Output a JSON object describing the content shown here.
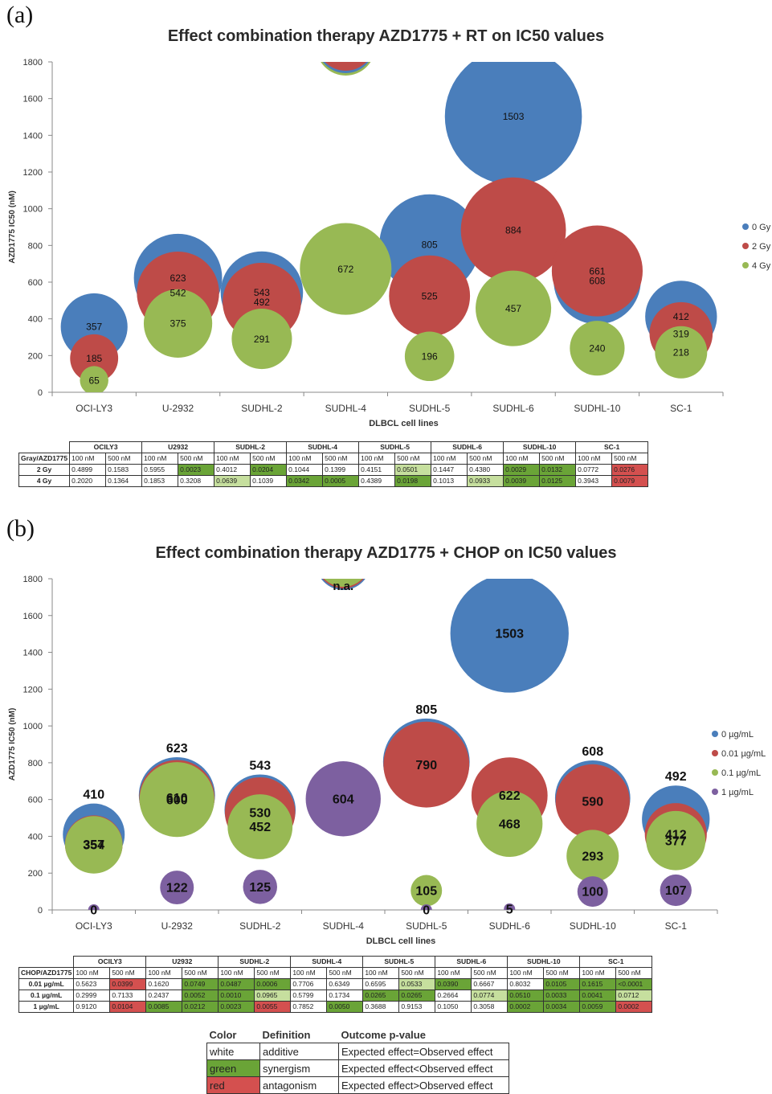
{
  "panel_a": {
    "label": "(a)",
    "chart_data": {
      "type": "bubble",
      "title": "Effect combination therapy AZD1775 + RT on IC50 values",
      "xlabel": "DLBCL cell lines",
      "ylabel": "AZD1775 IC50 (nM)",
      "ylim": [
        0,
        1800
      ],
      "yticks": [
        "0",
        "200",
        "400",
        "600",
        "800",
        "1000",
        "1200",
        "1400",
        "1600",
        "1800"
      ],
      "categories": [
        "OCI-LY3",
        "U-2932",
        "SUDHL-2",
        "SUDHL-4",
        "SUDHL-5",
        "SUDHL-6",
        "SUDHL-10",
        "SC-1"
      ],
      "legend_position": "right",
      "series": [
        {
          "name": "0 Gy",
          "color": "#4a7ebb",
          "values": [
            357,
            623,
            543,
            null,
            805,
            1503,
            608,
            412
          ],
          "labels": [
            "357",
            "623",
            "543",
            "",
            "805",
            "1503",
            "608",
            "412"
          ]
        },
        {
          "name": "2 Gy",
          "color": "#be4b48",
          "values": [
            185,
            542,
            492,
            null,
            525,
            884,
            661,
            319
          ],
          "labels": [
            "185",
            "542",
            "492",
            "",
            "525",
            "884",
            "661",
            "319"
          ]
        },
        {
          "name": "4 Gy",
          "color": "#98b954",
          "values": [
            65,
            375,
            291,
            672,
            196,
            457,
            240,
            218
          ],
          "labels": [
            "65",
            "375",
            "291",
            "672",
            "196",
            "457",
            "240",
            "218"
          ]
        }
      ]
    },
    "table": {
      "corner": "Gray/AZD1775",
      "lines": [
        "OCILY3",
        "U2932",
        "SUDHL-2",
        "SUDHL-4",
        "SUDHL-5",
        "SUDHL-6",
        "SUDHL-10",
        "SC-1"
      ],
      "doses": [
        "100 nM",
        "500 nM"
      ],
      "rows": [
        {
          "label": "2 Gy",
          "values": [
            "0.4899",
            "0.1583",
            "0.5955",
            "0.0023",
            "0.4012",
            "0.0204",
            "0.1044",
            "0.1399",
            "0.4151",
            "0.0501",
            "0.1447",
            "0.4380",
            "0.0029",
            "0.0132",
            "0.0772",
            "0.0276"
          ],
          "colors": [
            "w",
            "w",
            "w",
            "g",
            "w",
            "g",
            "w",
            "w",
            "w",
            "lg",
            "w",
            "w",
            "g",
            "g",
            "w",
            "r"
          ]
        },
        {
          "label": "4 Gy",
          "values": [
            "0.2020",
            "0.1364",
            "0.1853",
            "0.3208",
            "0.0639",
            "0.1039",
            "0.0342",
            "0.0005",
            "0.4389",
            "0.0198",
            "0.1013",
            "0.0933",
            "0.0039",
            "0.0125",
            "0.3943",
            "0.0079"
          ],
          "colors": [
            "w",
            "w",
            "w",
            "w",
            "lg",
            "w",
            "g",
            "g",
            "w",
            "g",
            "w",
            "lg",
            "g",
            "g",
            "w",
            "r"
          ]
        }
      ]
    }
  },
  "panel_b": {
    "label": "(b)",
    "chart_data": {
      "type": "bubble",
      "title": "Effect combination therapy AZD1775 + CHOP on IC50 values",
      "xlabel": "DLBCL cell lines",
      "ylabel": "AZD1775 IC50 (nM)",
      "ylim": [
        0,
        1800
      ],
      "yticks": [
        "0",
        "200",
        "400",
        "600",
        "800",
        "1000",
        "1200",
        "1400",
        "1600",
        "1800"
      ],
      "categories": [
        "OCI-LY3",
        "U-2932",
        "SUDHL-2",
        "SUDHL-4",
        "SUDHL-5",
        "SUDHL-6",
        "SUDHL-10",
        "SC-1"
      ],
      "legend_position": "right",
      "annotations": [
        "n.a."
      ],
      "series": [
        {
          "name": "0 µg/mL",
          "color": "#4a7ebb",
          "values": [
            410,
            623,
            543,
            null,
            805,
            1503,
            608,
            492
          ],
          "labels": [
            "410",
            "623",
            "543",
            "",
            "805",
            "1503",
            "608",
            "492"
          ]
        },
        {
          "name": "0.01 µg/mL",
          "color": "#be4b48",
          "values": [
            357,
            610,
            530,
            null,
            790,
            622,
            590,
            412
          ],
          "labels": [
            "357",
            "610",
            "530",
            "",
            "790",
            "622",
            "590",
            "412"
          ]
        },
        {
          "name": "0.1 µg/mL",
          "color": "#98b954",
          "values": [
            354,
            600,
            452,
            null,
            105,
            468,
            293,
            377
          ],
          "labels": [
            "354",
            "600",
            "452",
            "",
            "105",
            "468",
            "293",
            "377"
          ]
        },
        {
          "name": "1 µg/mL",
          "color": "#7d60a0",
          "values": [
            0,
            122,
            125,
            604,
            0,
            5,
            100,
            107
          ],
          "labels": [
            "0",
            "122",
            "125",
            "604",
            "0",
            "5",
            "100",
            "107"
          ]
        }
      ]
    },
    "table": {
      "corner": "CHOP/AZD1775",
      "lines": [
        "OCILY3",
        "U2932",
        "SUDHL-2",
        "SUDHL-4",
        "SUDHL-5",
        "SUDHL-6",
        "SUDHL-10",
        "SC-1"
      ],
      "doses": [
        "100 nM",
        "500 nM"
      ],
      "rows": [
        {
          "label": "0.01 µg/mL",
          "values": [
            "0.5623",
            "0.0399",
            "0.1620",
            "0.0749",
            "0.0487",
            "0.0006",
            "0.7706",
            "0.6349",
            "0.6595",
            "0.0533",
            "0.0390",
            "0.6667",
            "0.8032",
            "0.0105",
            "0.1615",
            "<0.0001"
          ],
          "colors": [
            "w",
            "r",
            "w",
            "g",
            "g",
            "g",
            "w",
            "w",
            "w",
            "lg",
            "g",
            "w",
            "w",
            "g",
            "g",
            "g"
          ]
        },
        {
          "label": "0.1 µg/mL",
          "values": [
            "0.2999",
            "0.7133",
            "0.2437",
            "0.0052",
            "0.0010",
            "0.0965",
            "0.5799",
            "0.1734",
            "0.0265",
            "0.0265",
            "0.2664",
            "0.0774",
            "0.0510",
            "0.0033",
            "0.0041",
            "0.0712"
          ],
          "colors": [
            "w",
            "w",
            "w",
            "g",
            "g",
            "lg",
            "w",
            "w",
            "g",
            "g",
            "w",
            "lg",
            "g",
            "g",
            "g",
            "lg"
          ]
        },
        {
          "label": "1 µg/mL",
          "values": [
            "0.9120",
            "0.0104",
            "0.0085",
            "0.0212",
            "0.0023",
            "0.0055",
            "0.7852",
            "0.0050",
            "0.3688",
            "0.9153",
            "0.1050",
            "0.3058",
            "0.0002",
            "0.0034",
            "0.0059",
            "0.0002"
          ],
          "colors": [
            "w",
            "r",
            "g",
            "g",
            "g",
            "r",
            "w",
            "g",
            "w",
            "w",
            "w",
            "w",
            "g",
            "g",
            "g",
            "r"
          ]
        }
      ]
    }
  },
  "legend_table": {
    "headers": [
      "Color",
      "Definition",
      "Outcome p-value"
    ],
    "rows": [
      {
        "color": "white",
        "definition": "additive",
        "outcome": "Expected effect=Observed effect"
      },
      {
        "color": "green",
        "definition": "synergism",
        "outcome": "Expected effect<Observed effect"
      },
      {
        "color": "red",
        "definition": "antagonism",
        "outcome": "Expected effect>Observed effect"
      }
    ]
  }
}
